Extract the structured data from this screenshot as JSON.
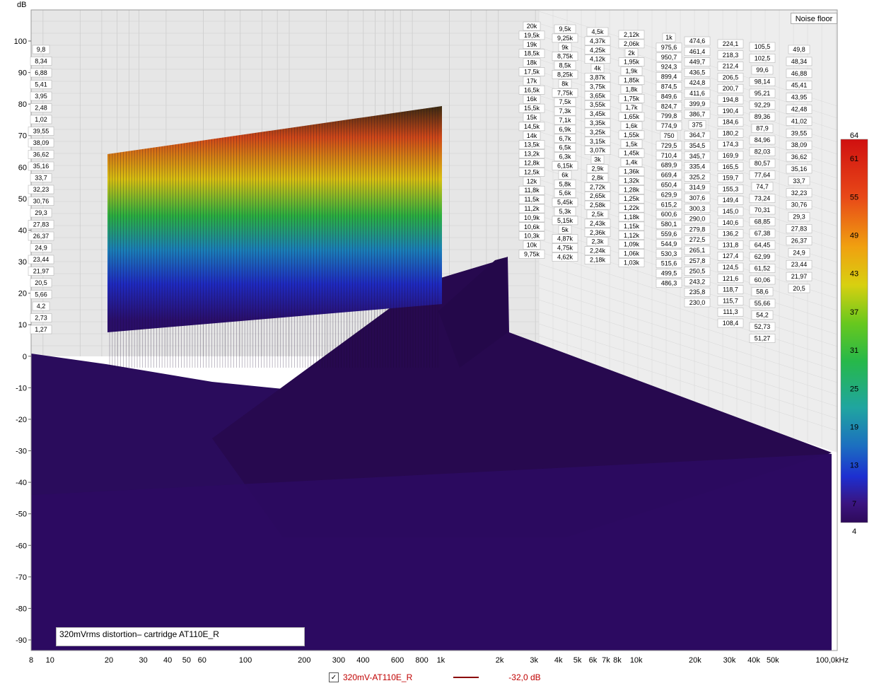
{
  "chart_data": {
    "type": "waterfall",
    "ylabel": "dB",
    "y_ticks": [
      "100",
      "90",
      "80",
      "70",
      "60",
      "50",
      "40",
      "30",
      "20",
      "10",
      "0",
      "-10",
      "-20",
      "-30",
      "-40",
      "-50",
      "-60",
      "-70",
      "-80",
      "-90"
    ],
    "ylim": [
      -93,
      106
    ],
    "x_ticks": [
      "8",
      "10",
      "20",
      "30",
      "40",
      "50",
      "60",
      "100",
      "200",
      "300",
      "400",
      "600",
      "800",
      "1k",
      "2k",
      "3k",
      "4k",
      "5k",
      "6k",
      "7k",
      "8k",
      "10k",
      "20k",
      "30k",
      "40k",
      "50k",
      "100,0kHz"
    ],
    "x_scale": "log",
    "xlim_hz": [
      8,
      100000
    ],
    "color_scale": {
      "ticks": [
        "64",
        "61",
        "55",
        "49",
        "43",
        "37",
        "31",
        "25",
        "19",
        "13",
        "7",
        "4"
      ],
      "range": [
        4,
        64
      ],
      "colors": [
        "#2e0a5a",
        "#3a1480",
        "#1d2fd0",
        "#1c6fc0",
        "#20a5a0",
        "#26b84a",
        "#68c81e",
        "#d8d010",
        "#f09a10",
        "#e84818",
        "#d01010"
      ]
    },
    "annotation_box": "Noise floor",
    "label_columns": [
      [
        "9,8",
        "8,34",
        "6,88",
        "5,41",
        "3,95",
        "2,48",
        "1,02",
        "39,55",
        "38,09",
        "36,62",
        "35,16",
        "33,7",
        "32,23",
        "30,76",
        "29,3",
        "27,83",
        "26,37",
        "24,9",
        "23,44",
        "21,97",
        "20,5",
        "5,66",
        "4,2",
        "2,73",
        "1,27"
      ],
      [
        "20k",
        "19,5k",
        "19k",
        "18,5k",
        "18k",
        "17,5k",
        "17k",
        "16,5k",
        "16k",
        "15,5k",
        "15k",
        "14,5k",
        "14k",
        "13,5k",
        "13,2k",
        "12,8k",
        "12,5k",
        "12k",
        "11,8k",
        "11,5k",
        "11,2k",
        "10,9k",
        "10,6k",
        "10,3k",
        "10k",
        "9,75k"
      ],
      [
        "9,5k",
        "9,25k",
        "9k",
        "8,75k",
        "8,5k",
        "8,25k",
        "8k",
        "7,75k",
        "7,5k",
        "7,3k",
        "7,1k",
        "6,9k",
        "6,7k",
        "6,5k",
        "6,3k",
        "6,15k",
        "6k",
        "5,8k",
        "5,6k",
        "5,45k",
        "5,3k",
        "5,15k",
        "5k",
        "4,87k",
        "4,75k",
        "4,62k"
      ],
      [
        "4,5k",
        "4,37k",
        "4,25k",
        "4,12k",
        "4k",
        "3,87k",
        "3,75k",
        "3,65k",
        "3,55k",
        "3,45k",
        "3,35k",
        "3,25k",
        "3,15k",
        "3,07k",
        "3k",
        "2,9k",
        "2,8k",
        "2,72k",
        "2,65k",
        "2,58k",
        "2,5k",
        "2,43k",
        "2,36k",
        "2,3k",
        "2,24k",
        "2,18k"
      ],
      [
        "2,12k",
        "2,06k",
        "2k",
        "1,95k",
        "1,9k",
        "1,85k",
        "1,8k",
        "1,75k",
        "1,7k",
        "1,65k",
        "1,6k",
        "1,55k",
        "1,5k",
        "1,45k",
        "1,4k",
        "1,36k",
        "1,32k",
        "1,28k",
        "1,25k",
        "1,22k",
        "1,18k",
        "1,15k",
        "1,12k",
        "1,09k",
        "1,06k",
        "1,03k"
      ],
      [
        "1k",
        "975,6",
        "950,7",
        "924,3",
        "899,4",
        "874,5",
        "849,6",
        "824,7",
        "799,8",
        "774,9",
        "750",
        "729,5",
        "710,4",
        "689,9",
        "669,4",
        "650,4",
        "629,9",
        "615,2",
        "600,6",
        "580,1",
        "559,6",
        "544,9",
        "530,3",
        "515,6",
        "499,5",
        "486,3"
      ],
      [
        "474,6",
        "461,4",
        "449,7",
        "436,5",
        "424,8",
        "411,6",
        "399,9",
        "386,7",
        "375",
        "364,7",
        "354,5",
        "345,7",
        "335,4",
        "325,2",
        "314,9",
        "307,6",
        "300,3",
        "290,0",
        "279,8",
        "272,5",
        "265,1",
        "257,8",
        "250,5",
        "243,2",
        "235,8",
        "230,0"
      ],
      [
        "224,1",
        "218,3",
        "212,4",
        "206,5",
        "200,7",
        "194,8",
        "190,4",
        "184,6",
        "180,2",
        "174,3",
        "169,9",
        "165,5",
        "159,7",
        "155,3",
        "149,4",
        "145,0",
        "140,6",
        "136,2",
        "131,8",
        "127,4",
        "124,5",
        "121,6",
        "118,7",
        "115,7",
        "111,3",
        "108,4"
      ],
      [
        "105,5",
        "102,5",
        "99,6",
        "98,14",
        "95,21",
        "92,29",
        "89,36",
        "87,9",
        "84,96",
        "82,03",
        "80,57",
        "77,64",
        "74,7",
        "73,24",
        "70,31",
        "68,85",
        "67,38",
        "64,45",
        "62,99",
        "61,52",
        "60,06",
        "58,6",
        "55,66",
        "54,2",
        "52,73",
        "51,27"
      ],
      [
        "49,8",
        "48,34",
        "46,88",
        "45,41",
        "43,95",
        "42,48",
        "41,02",
        "39,55",
        "38,09",
        "36,62",
        "35,16",
        "33,7",
        "32,23",
        "30,76",
        "29,3",
        "27,83",
        "26,37",
        "24,9",
        "23,44",
        "21,97",
        "20,5"
      ]
    ],
    "caption": "320mVrms distortion– cartridge AT110E_R",
    "series": [
      {
        "name": "320mV-AT110E_R",
        "value": "-32,0 dB",
        "color": "#8b0000"
      }
    ]
  }
}
